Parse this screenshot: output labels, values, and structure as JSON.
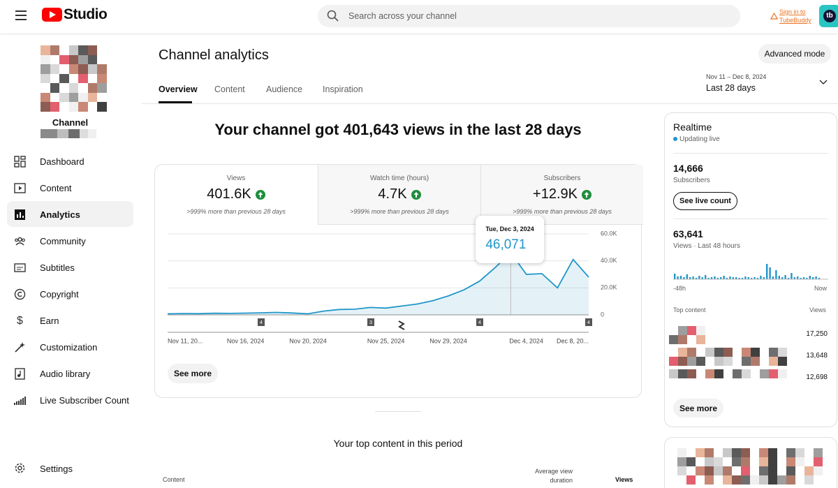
{
  "header": {
    "logo": "Studio",
    "search_placeholder": "Search across your channel",
    "tubebuddy_line1": "Sign in to",
    "tubebuddy_line2": "TubeBuddy"
  },
  "sidebar": {
    "channel": "Channel",
    "nav": [
      "Dashboard",
      "Content",
      "Analytics",
      "Community",
      "Subtitles",
      "Copyright",
      "Earn",
      "Customization",
      "Audio library",
      "Live Subscriber Count"
    ],
    "settings": "Settings"
  },
  "main": {
    "title": "Channel analytics",
    "tabs": [
      "Overview",
      "Content",
      "Audience",
      "Inspiration"
    ],
    "advanced_mode": "Advanced mode",
    "date_range": "Nov 11 – Dec 8, 2024",
    "period": "Last 28 days",
    "headline": "Your channel got 401,643 views in the last 28 days",
    "metrics": [
      {
        "label": "Views",
        "value": "401.6K",
        "change": ">999% more than previous 28 days"
      },
      {
        "label": "Watch time (hours)",
        "value": "4.7K",
        "change": ">999% more than previous 28 days"
      },
      {
        "label": "Subscribers",
        "value": "+12.9K",
        "change": ">999% more than previous 28 days"
      }
    ],
    "see_more": "See more",
    "top_content_title": "Your top content in this period",
    "table_headers": {
      "content": "Content",
      "duration_line1": "Average view",
      "duration_line2": "duration",
      "views": "Views"
    }
  },
  "chart_data": {
    "type": "line",
    "categories": [
      "Nov 11, 20...",
      null,
      null,
      null,
      null,
      "Nov 16, 2024",
      null,
      null,
      null,
      "Nov 20, 2024",
      null,
      null,
      null,
      null,
      "Nov 25, 2024",
      null,
      null,
      null,
      "Nov 29, 2024",
      null,
      null,
      null,
      null,
      "Dec 4, 2024",
      null,
      null,
      null,
      "Dec 8, 20..."
    ],
    "series": [
      {
        "name": "Views",
        "color": "#2196c9",
        "values": [
          800,
          1000,
          900,
          1200,
          1100,
          1300,
          1500,
          1800,
          1400,
          800,
          2800,
          4000,
          4200,
          5500,
          5000,
          6500,
          8000,
          10500,
          14000,
          18500,
          25000,
          35000,
          46071,
          30000,
          30500,
          20000,
          41000,
          28000
        ]
      }
    ],
    "ylim": [
      0,
      60000
    ],
    "yticks": [
      0,
      {
        "value": 20000,
        "label": "20.0K"
      },
      {
        "value": 40000,
        "label": "40.0K"
      },
      {
        "value": 60000,
        "label": "60.0K"
      }
    ],
    "grid": true,
    "tooltip": {
      "title": "Tue, Dec 3, 2024",
      "label": "46,071"
    },
    "annotations": [
      "4",
      "3",
      "4",
      "4"
    ]
  },
  "realtime": {
    "title": "Realtime",
    "status": "Updating live",
    "subscribers": "14,666",
    "subscribers_label": "Subscribers",
    "see_live_count": "See live count",
    "views": "63,641",
    "views_label": "Views · Last 48 hours",
    "axis_start": "-48h",
    "axis_end": "Now",
    "top_content": "Top content",
    "views_header": "Views",
    "top_views": [
      "17,250",
      "13,648",
      "12,698"
    ],
    "see_more": "See more"
  }
}
